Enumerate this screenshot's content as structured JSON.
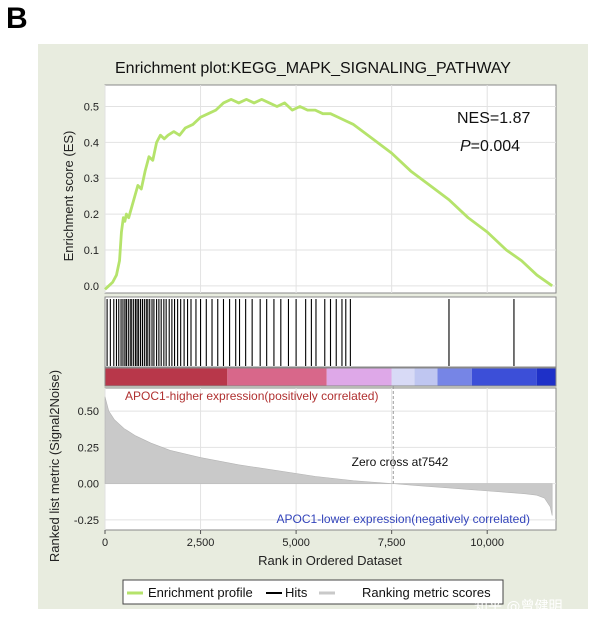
{
  "panel_label": "B",
  "watermark": "知乎 @曾健明",
  "colors": {
    "panel_bg": "#e8ecdf",
    "es_line": "#b5e36b",
    "hits": "#000000",
    "metric_fill": "#c9c9c9",
    "pos_label": "#b03030",
    "neg_label": "#3344bb",
    "grid": "#e2e2e2"
  },
  "chart_data": {
    "type": "line",
    "title": "Enrichment plot:KEGG_MAPK_SIGNALING_PATHWAY",
    "ylabel": "Enrichment score (ES)",
    "ylabel_bottom": "Ranked list metric (Signal2Noise)",
    "xlabel": "Rank in Ordered Dataset",
    "xlim": [
      0,
      11800
    ],
    "x_ticks": [
      0,
      2500,
      5000,
      7500,
      10000
    ],
    "x_tick_labels": [
      "0",
      "2,500",
      "5,000",
      "7,500",
      "10,000"
    ],
    "es_ylim": [
      -0.02,
      0.56
    ],
    "es_ticks": [
      0.0,
      0.1,
      0.2,
      0.3,
      0.4,
      0.5
    ],
    "es_tick_labels": [
      "0.0",
      "0.1",
      "0.2",
      "0.3",
      "0.4",
      "0.5"
    ],
    "metric_ylim": [
      -0.32,
      0.66
    ],
    "metric_ticks": [
      0.5,
      0.25,
      0.0,
      -0.25
    ],
    "metric_tick_labels": [
      "0.50",
      "0.25",
      "0.00",
      "-0.25"
    ],
    "nes_label": "NES=1.87",
    "p_label_prefix": "P",
    "p_label_value": "=0.004",
    "es_profile": {
      "x": [
        0,
        100,
        200,
        300,
        380,
        430,
        480,
        520,
        560,
        620,
        700,
        780,
        860,
        950,
        1050,
        1150,
        1250,
        1350,
        1450,
        1550,
        1650,
        1800,
        1950,
        2100,
        2300,
        2500,
        2700,
        2900,
        3100,
        3300,
        3500,
        3700,
        3900,
        4100,
        4300,
        4500,
        4700,
        4900,
        5100,
        5300,
        5500,
        5700,
        5900,
        6100,
        6300,
        6500,
        7000,
        7500,
        8000,
        8500,
        9000,
        9500,
        10000,
        10500,
        10900,
        11300,
        11700
      ],
      "y": [
        -0.01,
        0.0,
        0.01,
        0.03,
        0.07,
        0.15,
        0.19,
        0.18,
        0.2,
        0.19,
        0.22,
        0.25,
        0.28,
        0.27,
        0.32,
        0.36,
        0.35,
        0.4,
        0.42,
        0.41,
        0.42,
        0.43,
        0.42,
        0.44,
        0.45,
        0.47,
        0.48,
        0.49,
        0.51,
        0.52,
        0.51,
        0.52,
        0.51,
        0.52,
        0.51,
        0.5,
        0.51,
        0.49,
        0.5,
        0.49,
        0.49,
        0.48,
        0.48,
        0.47,
        0.46,
        0.45,
        0.41,
        0.37,
        0.32,
        0.28,
        0.24,
        0.19,
        0.15,
        0.1,
        0.07,
        0.03,
        0.0
      ]
    },
    "hits": [
      55,
      140,
      230,
      300,
      360,
      420,
      470,
      520,
      560,
      610,
      660,
      700,
      750,
      800,
      840,
      880,
      930,
      980,
      1030,
      1080,
      1120,
      1170,
      1230,
      1280,
      1350,
      1410,
      1470,
      1540,
      1600,
      1680,
      1750,
      1820,
      1900,
      1980,
      2070,
      2160,
      2250,
      2380,
      2500,
      2650,
      2800,
      2950,
      3100,
      3260,
      3420,
      3520,
      3680,
      3850,
      4060,
      4230,
      4420,
      4600,
      4800,
      5000,
      5250,
      5400,
      5520,
      5750,
      5900,
      6050,
      6200,
      6300,
      6420,
      9000,
      10700
    ],
    "heatmap_segments": [
      {
        "start": 0,
        "end": 3200,
        "color": "#b8374a"
      },
      {
        "start": 3200,
        "end": 5800,
        "color": "#d8678a"
      },
      {
        "start": 5800,
        "end": 7500,
        "color": "#dea8e8"
      },
      {
        "start": 7500,
        "end": 8100,
        "color": "#d8daf6"
      },
      {
        "start": 8100,
        "end": 8700,
        "color": "#bfc6f1"
      },
      {
        "start": 8700,
        "end": 9600,
        "color": "#7685e6"
      },
      {
        "start": 9600,
        "end": 11300,
        "color": "#3c4fd8"
      },
      {
        "start": 11300,
        "end": 11800,
        "color": "#1e30c8"
      }
    ],
    "metric_curve": {
      "x": [
        0,
        100,
        250,
        500,
        800,
        1200,
        1700,
        2500,
        3500,
        4500,
        5500,
        6500,
        7000,
        7542,
        8000,
        8500,
        9000,
        9500,
        10000,
        10500,
        11000,
        11300,
        11500,
        11650,
        11700
      ],
      "y": [
        0.6,
        0.5,
        0.44,
        0.38,
        0.33,
        0.28,
        0.23,
        0.18,
        0.13,
        0.09,
        0.05,
        0.02,
        0.01,
        0.0,
        -0.01,
        -0.02,
        -0.03,
        -0.04,
        -0.05,
        -0.06,
        -0.07,
        -0.08,
        -0.1,
        -0.16,
        -0.22
      ]
    },
    "zero_cross_x": 7542,
    "zero_cross_label": "Zero cross at7542",
    "pos_label": "APOC1-higher expression(positively correlated)",
    "neg_label": "APOC1-lower expression(negatively correlated)",
    "legend": [
      "Enrichment profile",
      "Hits",
      "Ranking metric scores"
    ]
  }
}
